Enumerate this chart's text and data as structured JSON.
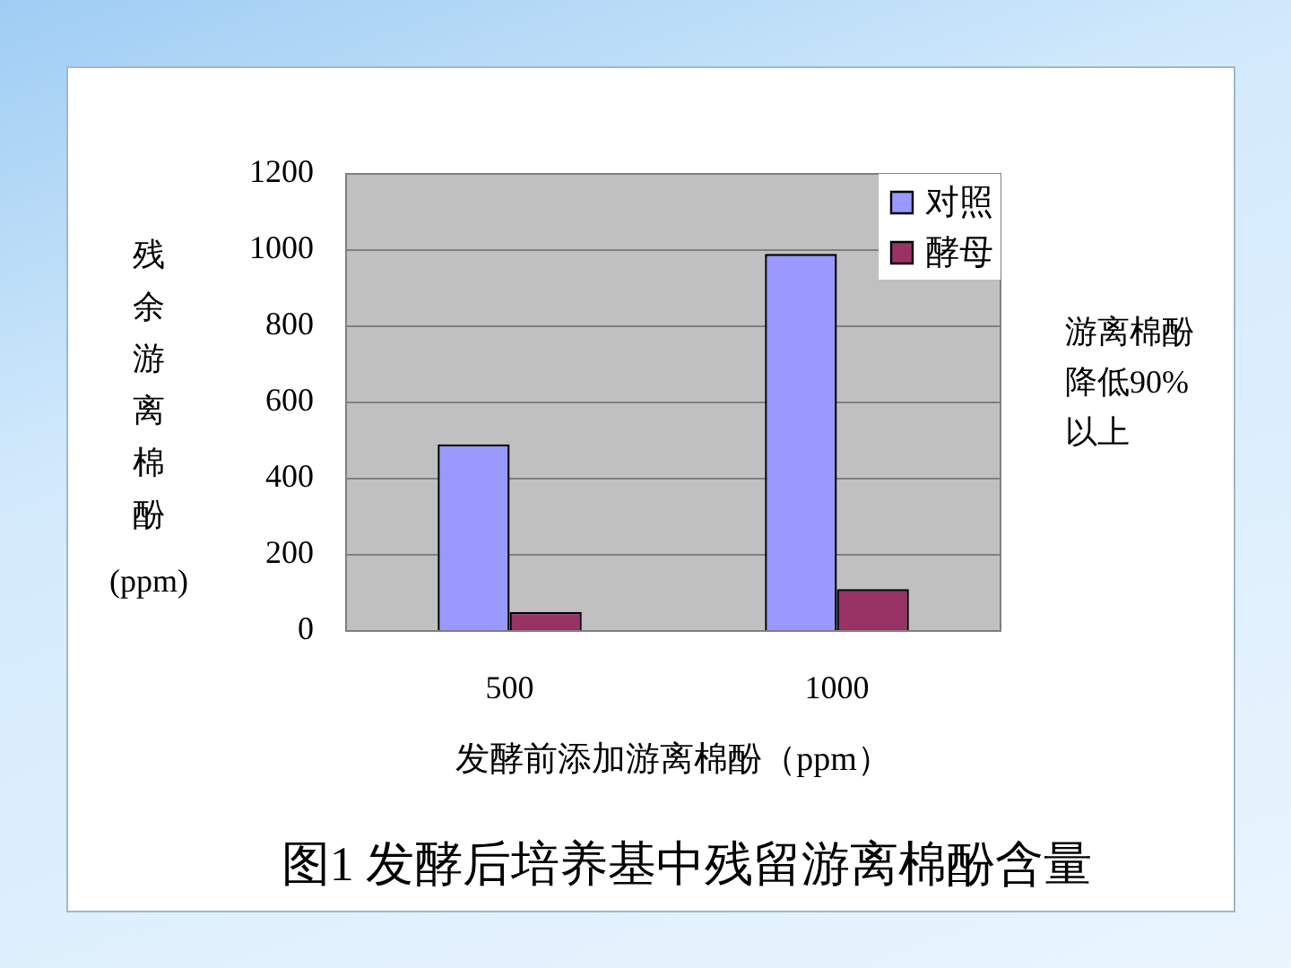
{
  "chart_data": {
    "type": "bar",
    "title": "图1 发酵后培养基中残留游离棉酚含量",
    "xlabel": "发酵前添加游离棉酚（ppm）",
    "ylabel": "残余游离棉酚(ppm)",
    "annotations": [
      "游离棉酚降低90%以上"
    ],
    "categories": [
      "500",
      "1000"
    ],
    "series": [
      {
        "name": "对照",
        "color": "#9999ff",
        "values": [
          490,
          990
        ]
      },
      {
        "name": "酵母",
        "color": "#993366",
        "values": [
          50,
          110
        ]
      }
    ],
    "ylim": [
      0,
      1200
    ],
    "yticks": [
      0,
      200,
      400,
      600,
      800,
      1000,
      1200
    ],
    "grid": "y",
    "legend": "top right"
  }
}
